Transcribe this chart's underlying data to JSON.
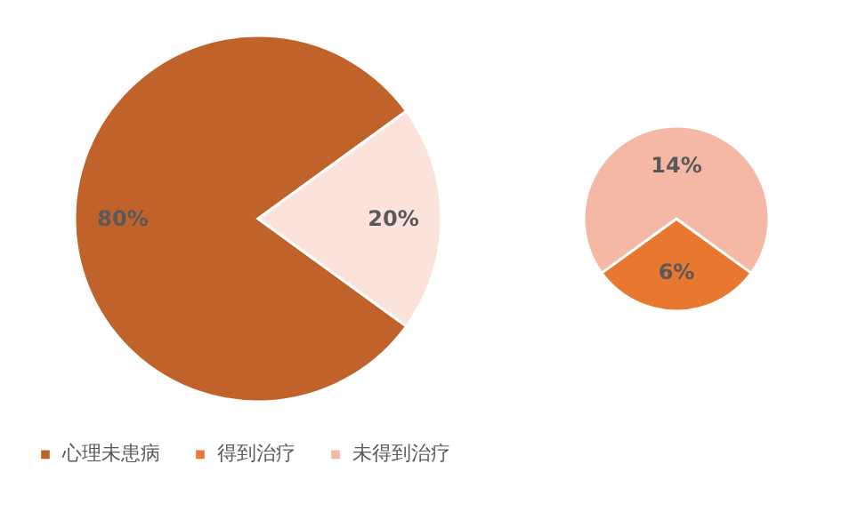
{
  "chart_data": [
    {
      "type": "pie",
      "categories": [
        "心理未患病",
        null
      ],
      "values": [
        80,
        20
      ],
      "colors": [
        "#c0632b",
        "#fbe3dc"
      ],
      "value_labels": [
        "80%",
        "20%"
      ],
      "legend": "bottom"
    },
    {
      "type": "pie",
      "categories": [
        "得到治疗",
        "未得到治疗"
      ],
      "values": [
        6,
        14
      ],
      "colors": [
        "#e8782f",
        "#f4b8a5"
      ],
      "value_labels": [
        "6%",
        "14%"
      ],
      "legend": "bottom"
    }
  ]
}
